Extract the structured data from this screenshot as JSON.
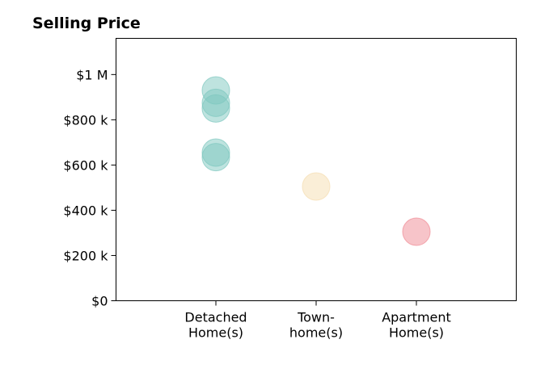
{
  "chart_data": {
    "type": "scatter",
    "title": "Selling Price",
    "xlabel": "",
    "ylabel": "",
    "categories": [
      "Detached\nHome(s)",
      "Town-\nhome(s)",
      "Apartment\nHome(s)"
    ],
    "ylim": [
      0,
      1160000
    ],
    "yticks": [
      0,
      200000,
      400000,
      600000,
      800000,
      1000000
    ],
    "ytick_labels": [
      "$0",
      "$200 k",
      "$400 k",
      "$600 k",
      "$800 k",
      "$1 M"
    ],
    "grid": false,
    "points": [
      {
        "category": "Detached\nHome(s)",
        "y": 930000,
        "color": "#7ec8bf"
      },
      {
        "category": "Detached\nHome(s)",
        "y": 875000,
        "color": "#7ec8bf"
      },
      {
        "category": "Detached\nHome(s)",
        "y": 850000,
        "color": "#7ec8bf"
      },
      {
        "category": "Detached\nHome(s)",
        "y": 655000,
        "color": "#7ec8bf"
      },
      {
        "category": "Detached\nHome(s)",
        "y": 635000,
        "color": "#7ec8bf"
      },
      {
        "category": "Town-\nhome(s)",
        "y": 505000,
        "color": "#f5ddb0"
      },
      {
        "category": "Apartment\nHome(s)",
        "y": 305000,
        "color": "#f08a94"
      }
    ]
  }
}
